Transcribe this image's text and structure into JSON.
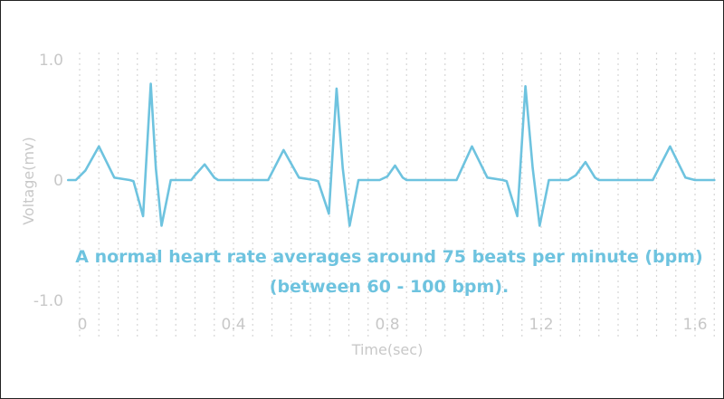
{
  "chart_data": {
    "type": "line",
    "xlabel": "Time(sec)",
    "ylabel": "Voltage(mv)",
    "xlim": [
      0,
      1.65
    ],
    "ylim": [
      -1.0,
      1.0
    ],
    "x_ticks": [
      {
        "value": 0,
        "label": "0"
      },
      {
        "value": 0.4,
        "label": "0.4"
      },
      {
        "value": 0.8,
        "label": "0.8"
      },
      {
        "value": 1.2,
        "label": "1.2"
      },
      {
        "value": 1.6,
        "label": "1.6"
      }
    ],
    "y_ticks": [
      {
        "value": 1.0,
        "label": "1.0"
      },
      {
        "value": 0,
        "label": "0"
      },
      {
        "value": -1.0,
        "label": "-1.0"
      }
    ],
    "grid": "vertical dotted",
    "line_color": "#6ec3df",
    "annotation": [
      "A normal heart rate averages around 75 beats per minute (bpm)",
      "(between 60 - 100 bpm)."
    ],
    "series": [
      {
        "x": [
          -0.03,
          -0.01,
          0.015,
          0.05,
          0.09,
          0.13,
          0.14,
          0.165,
          0.185,
          0.198,
          0.213,
          0.237,
          0.262,
          0.29,
          0.3,
          0.325,
          0.35,
          0.36,
          0.4,
          0.45,
          0.49,
          0.53,
          0.57,
          0.61,
          0.62,
          0.648,
          0.668,
          0.684,
          0.702,
          0.725,
          0.75,
          0.78,
          0.8,
          0.82,
          0.84,
          0.85,
          0.9,
          0.95,
          0.98,
          1.02,
          1.06,
          1.1,
          1.11,
          1.138,
          1.159,
          1.178,
          1.196,
          1.22,
          1.242,
          1.27,
          1.29,
          1.315,
          1.34,
          1.35,
          1.4,
          1.45,
          1.49,
          1.535,
          1.575,
          1.6,
          1.65
        ],
        "y": [
          0,
          0,
          0.08,
          0.28,
          0.02,
          0,
          -0.01,
          -0.3,
          0.8,
          0.1,
          -0.38,
          0,
          0,
          0,
          0.04,
          0.13,
          0.02,
          0,
          0,
          0,
          0,
          0.25,
          0.02,
          0,
          -0.01,
          -0.28,
          0.76,
          0.1,
          -0.38,
          0,
          0,
          0,
          0.03,
          0.12,
          0.02,
          0,
          0,
          0,
          0,
          0.28,
          0.02,
          0,
          -0.01,
          -0.3,
          0.78,
          0.1,
          -0.38,
          0,
          0,
          0,
          0.04,
          0.15,
          0.02,
          0,
          0,
          0,
          0,
          0.28,
          0.02,
          0,
          0
        ]
      }
    ]
  }
}
